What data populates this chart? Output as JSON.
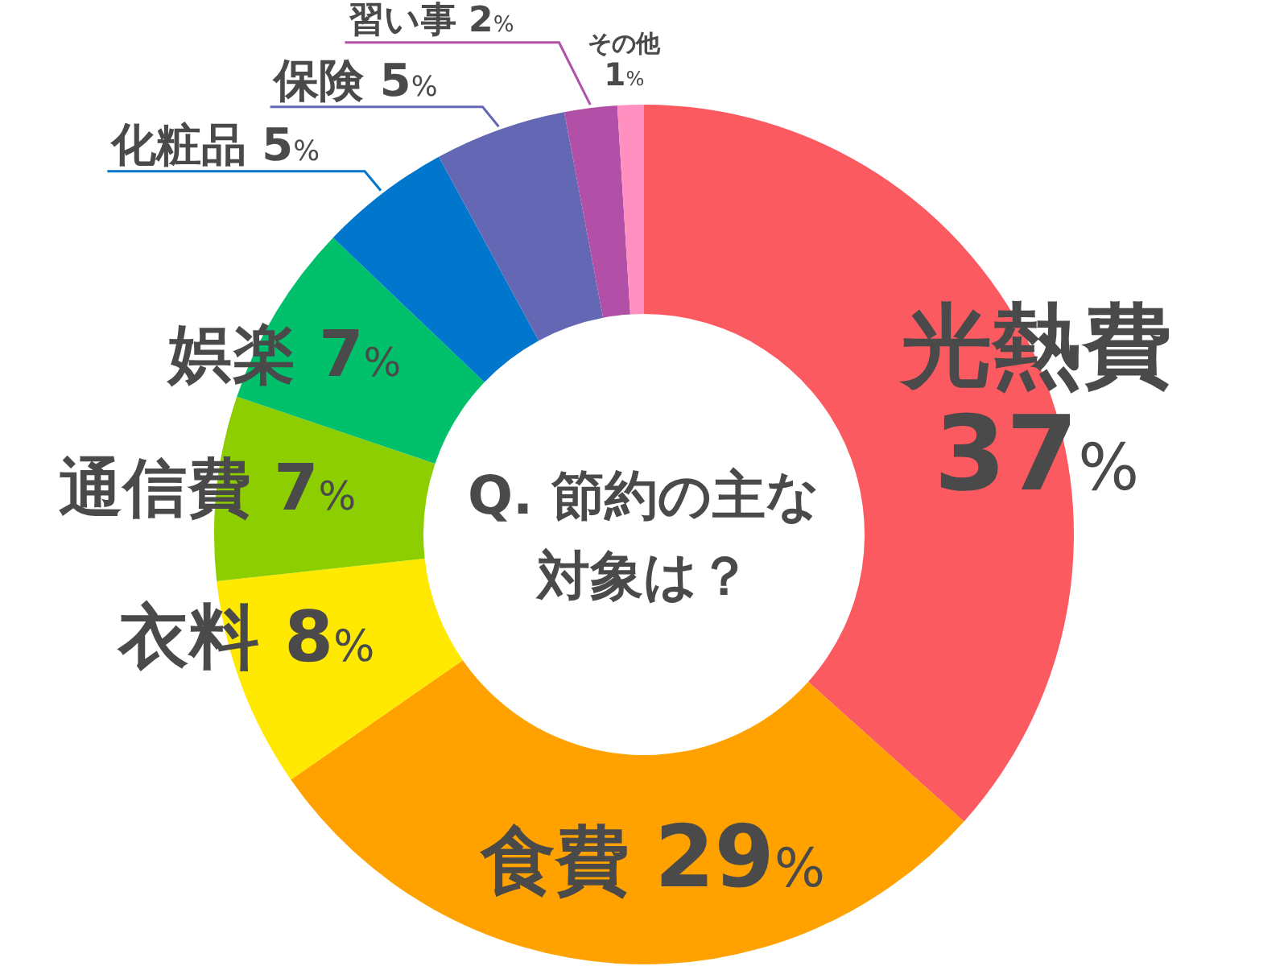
{
  "chart_data": {
    "type": "donut",
    "title": "Q. 節約の主な対象は？",
    "categories": [
      "光熱費",
      "食費",
      "衣料",
      "通信費",
      "娯楽",
      "化粧品",
      "保険",
      "習い事",
      "その他"
    ],
    "values": [
      37,
      29,
      8,
      7,
      7,
      5,
      5,
      2,
      1
    ],
    "value_labels": [
      "37%",
      "29%",
      "8%",
      "7%",
      "7%",
      "5%",
      "5%",
      "2%",
      "1%"
    ],
    "colors": [
      "#fc5a61",
      "#ffa200",
      "#ffe900",
      "#8cce00",
      "#00c06c",
      "#0077cc",
      "#6468b4",
      "#b24fa6",
      "#ff90bf"
    ]
  }
}
